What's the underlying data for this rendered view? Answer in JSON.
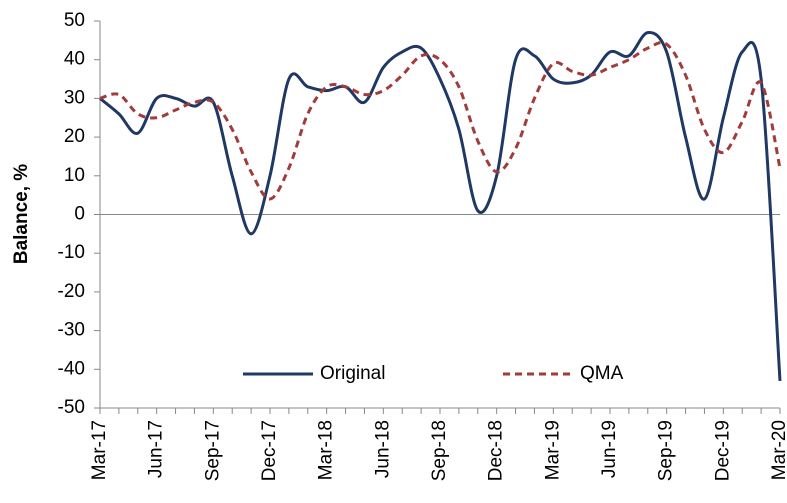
{
  "chart_data": {
    "type": "line",
    "y_label": "Balance, %",
    "categories": [
      "Mar-17",
      null,
      null,
      "Jun-17",
      null,
      null,
      "Sep-17",
      null,
      null,
      "Dec-17",
      null,
      null,
      "Mar-18",
      null,
      null,
      "Jun-18",
      null,
      null,
      "Sep-18",
      null,
      null,
      "Dec-18",
      null,
      null,
      "Mar-19",
      null,
      null,
      "Jun-19",
      null,
      null,
      "Sep-19",
      null,
      null,
      "Dec-19",
      null,
      null,
      "Mar-20"
    ],
    "series": [
      {
        "name": "Original",
        "color": "#1f3864",
        "dashed": false,
        "values": [
          30,
          26,
          21,
          30,
          30,
          28,
          29,
          10,
          -5,
          10,
          35,
          33,
          32,
          33,
          29,
          38,
          42,
          43,
          35,
          22,
          1,
          10,
          40,
          41,
          35,
          34,
          36,
          42,
          41,
          47,
          42,
          20,
          4,
          25,
          42,
          35,
          -43
        ]
      },
      {
        "name": "QMA",
        "color": "#a23b3b",
        "dashed": true,
        "values": [
          30,
          31,
          26,
          25,
          27,
          29,
          29,
          22,
          11,
          4,
          12,
          26,
          33,
          33,
          31,
          32,
          36,
          41,
          40,
          33,
          19,
          11,
          17,
          30,
          39,
          37,
          36,
          38,
          40,
          43,
          44,
          36,
          22,
          16,
          24,
          34,
          12
        ]
      }
    ],
    "ylim": [
      -50,
      50
    ],
    "yticks": [
      -50,
      -40,
      -30,
      -20,
      -10,
      0,
      10,
      20,
      30,
      40,
      50
    ],
    "legend": "bottom"
  }
}
